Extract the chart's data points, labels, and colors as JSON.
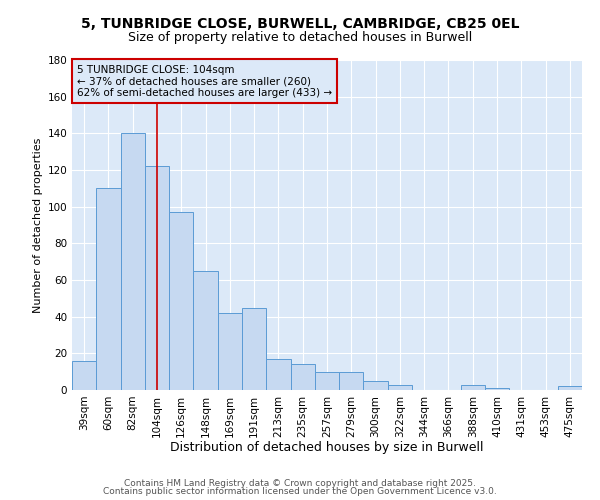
{
  "title": "5, TUNBRIDGE CLOSE, BURWELL, CAMBRIDGE, CB25 0EL",
  "subtitle": "Size of property relative to detached houses in Burwell",
  "xlabel": "Distribution of detached houses by size in Burwell",
  "ylabel": "Number of detached properties",
  "categories": [
    "39sqm",
    "60sqm",
    "82sqm",
    "104sqm",
    "126sqm",
    "148sqm",
    "169sqm",
    "191sqm",
    "213sqm",
    "235sqm",
    "257sqm",
    "279sqm",
    "300sqm",
    "322sqm",
    "344sqm",
    "366sqm",
    "388sqm",
    "410sqm",
    "431sqm",
    "453sqm",
    "475sqm"
  ],
  "values": [
    16,
    110,
    140,
    122,
    97,
    65,
    42,
    45,
    17,
    14,
    10,
    10,
    5,
    3,
    0,
    0,
    3,
    1,
    0,
    0,
    2
  ],
  "bar_color": "#c6d9f1",
  "bar_edge_color": "#5b9bd5",
  "vline_x": 3,
  "vline_color": "#cc0000",
  "annotation_line1": "5 TUNBRIDGE CLOSE: 104sqm",
  "annotation_line2": "← 37% of detached houses are smaller (260)",
  "annotation_line3": "62% of semi-detached houses are larger (433) →",
  "annotation_box_edge_color": "#cc0000",
  "ylim": [
    0,
    180
  ],
  "yticks": [
    0,
    20,
    40,
    60,
    80,
    100,
    120,
    140,
    160,
    180
  ],
  "footer1": "Contains HM Land Registry data © Crown copyright and database right 2025.",
  "footer2": "Contains public sector information licensed under the Open Government Licence v3.0.",
  "figure_bg": "#ffffff",
  "axes_bg": "#dce9f8",
  "grid_color": "#ffffff",
  "title_fontsize": 10,
  "subtitle_fontsize": 9,
  "xlabel_fontsize": 9,
  "ylabel_fontsize": 8,
  "tick_fontsize": 7.5,
  "annotation_fontsize": 7.5,
  "footer_fontsize": 6.5
}
